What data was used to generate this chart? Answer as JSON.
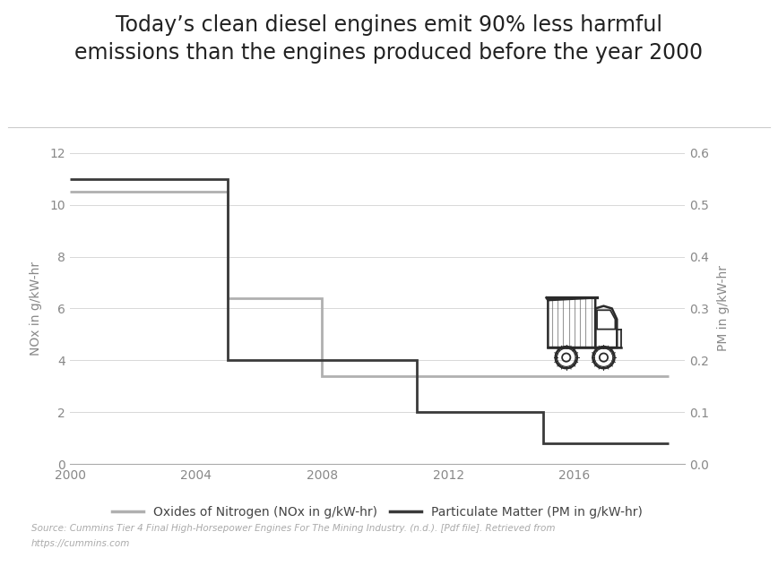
{
  "title": "Today’s clean diesel engines emit 90% less harmful\nemissions than the engines produced before the year 2000",
  "title_fontsize": 17,
  "background_color": "#ffffff",
  "nox_color": "#b0b0b0",
  "pm_color": "#3a3a3a",
  "nox_label": "Oxides of Nitrogen (NOx in g/kW-hr)",
  "pm_label": "Particulate Matter (PM in g/kW-hr)",
  "ylabel_left": "NOx in g/kW-hr",
  "ylabel_right": "PM in g/kW-hr",
  "ylim_left": [
    0,
    12
  ],
  "ylim_right": [
    0,
    0.6
  ],
  "source_line1": "Source: Cummins Tier 4 Final High-Horsepower Engines For The Mining Industry. (n.d.). [Pdf file]. Retrieved from",
  "source_line2": "https://cummins.com",
  "nox_x": [
    2000,
    2005,
    2005,
    2008,
    2008,
    2012,
    2012,
    2019
  ],
  "nox_y": [
    10.5,
    10.5,
    6.4,
    6.4,
    3.4,
    3.4,
    3.4,
    3.4
  ],
  "pm_x": [
    2000,
    2005,
    2005,
    2008,
    2008,
    2011,
    2011,
    2014,
    2014,
    2015,
    2015,
    2019
  ],
  "pm_y": [
    0.55,
    0.55,
    0.2,
    0.2,
    0.2,
    0.2,
    0.1,
    0.1,
    0.1,
    0.1,
    0.04,
    0.04
  ],
  "xticks": [
    2000,
    2004,
    2008,
    2012,
    2016
  ],
  "yticks_left": [
    0,
    2,
    4,
    6,
    8,
    10,
    12
  ],
  "yticks_right": [
    0,
    0.1,
    0.2,
    0.3,
    0.4,
    0.5,
    0.6
  ],
  "line_width": 2.0,
  "legend_fontsize": 10,
  "axis_label_fontsize": 10,
  "tick_fontsize": 10,
  "grid_color": "#d8d8d8",
  "tick_color": "#888888",
  "spine_color": "#aaaaaa"
}
